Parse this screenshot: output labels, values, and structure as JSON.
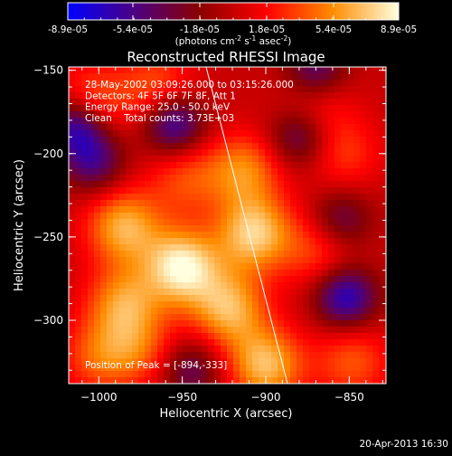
{
  "colorbar": {
    "tick_labels": [
      "-8.9e-05",
      "-5.4e-05",
      "-1.8e-05",
      "1.8e-05",
      "5.4e-05",
      "8.9e-05"
    ],
    "unit_parts": [
      "(photons cm",
      "-2",
      " s",
      "-1",
      " asec",
      "-2",
      ")"
    ]
  },
  "plot": {
    "title": "Reconstructed RHESSI Image",
    "info_lines": [
      "28-May-2002 03:09:26.000 to 03:15:26.000",
      "Detectors: 4F 5F 6F 7F 8F, Att 1",
      "Energy Range: 25.0 - 50.0 keV",
      "Clean    Total counts: 3.73E+03"
    ],
    "peak_label": "Position of Peak = [-894,-333]",
    "timestamp": "20-Apr-2013 16:30"
  },
  "chart_data": {
    "type": "heatmap",
    "title": "Reconstructed RHESSI Image",
    "xlabel": "Heliocentric X (arcsec)",
    "ylabel": "Heliocentric Y (arcsec)",
    "xlim": [
      -1018,
      -828
    ],
    "ylim": [
      -338,
      -148
    ],
    "x_ticks": [
      -1000,
      -950,
      -900,
      -850
    ],
    "y_ticks": [
      -300,
      -250,
      -200,
      -150
    ],
    "x_tick_labels": [
      "−1000",
      "−950",
      "−900",
      "−850"
    ],
    "y_tick_labels": [
      "−300",
      "−250",
      "−200",
      "−150"
    ],
    "colorbar_range": [
      -8.9e-05,
      8.9e-05
    ],
    "colormap": [
      "#0000ff",
      "#4b0082",
      "#8b0000",
      "#ff0000",
      "#ff8c00",
      "#ffffe0"
    ],
    "peak": [
      -894,
      -333
    ],
    "sources": [
      {
        "x": -950,
        "y": -268,
        "level": 1.0
      },
      {
        "x": -907,
        "y": -248,
        "level": 0.85
      },
      {
        "x": -985,
        "y": -244,
        "level": 0.75
      },
      {
        "x": -985,
        "y": -290,
        "level": 0.65
      },
      {
        "x": -913,
        "y": -210,
        "level": 0.6
      },
      {
        "x": -922,
        "y": -293,
        "level": 0.75
      },
      {
        "x": -1005,
        "y": -170,
        "level": 0.55
      },
      {
        "x": -965,
        "y": -160,
        "level": 0.45
      },
      {
        "x": -868,
        "y": -258,
        "level": 0.4
      },
      {
        "x": -848,
        "y": -325,
        "level": 0.45
      },
      {
        "x": -900,
        "y": -327,
        "level": 0.8
      },
      {
        "x": -853,
        "y": -200,
        "level": 0.35
      },
      {
        "x": -1000,
        "y": -322,
        "level": 0.45
      },
      {
        "x": -948,
        "y": -215,
        "level": 0.4
      },
      {
        "x": -975,
        "y": -318,
        "level": 0.4
      },
      {
        "x": -870,
        "y": -170,
        "level": 0.3
      }
    ],
    "negative_sources": [
      {
        "x": -1013,
        "y": -183,
        "level": -0.9
      },
      {
        "x": -955,
        "y": -182,
        "level": -0.8
      },
      {
        "x": -852,
        "y": -286,
        "level": -0.85
      },
      {
        "x": -880,
        "y": -190,
        "level": -0.55
      },
      {
        "x": -870,
        "y": -150,
        "level": -0.6
      },
      {
        "x": -1003,
        "y": -205,
        "level": -0.6
      },
      {
        "x": -945,
        "y": -330,
        "level": -0.5
      },
      {
        "x": -855,
        "y": -240,
        "level": -0.5
      }
    ]
  }
}
